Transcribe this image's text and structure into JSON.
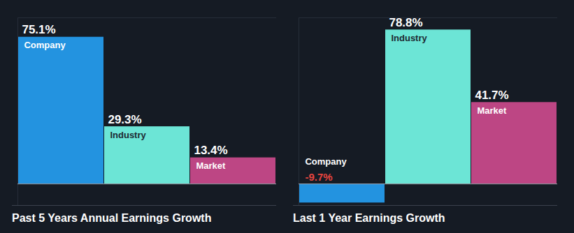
{
  "chart_data": [
    {
      "type": "bar",
      "title": "Past 5 Years Annual Earnings Growth",
      "categories": [
        "Company",
        "Industry",
        "Market"
      ],
      "values": [
        75.1,
        29.3,
        13.4
      ],
      "value_labels": [
        "75.1%",
        "29.3%",
        "13.4%"
      ],
      "colors": [
        "#2393e0",
        "#6ce5d6",
        "#bd4684"
      ],
      "ylim": [
        -11,
        85
      ],
      "yticks": [
        0
      ],
      "grid": true,
      "data_labels": true,
      "tick_labels": false
    },
    {
      "type": "bar",
      "title": "Last 1 Year Earnings Growth",
      "categories": [
        "Company",
        "Industry",
        "Market"
      ],
      "values": [
        -9.7,
        78.8,
        41.7
      ],
      "value_labels": [
        "-9.7%",
        "78.8%",
        "41.7%"
      ],
      "colors": [
        "#2393e0",
        "#6ce5d6",
        "#bd4684"
      ],
      "ylim": [
        -11,
        85
      ],
      "yticks": [
        0
      ],
      "grid": true,
      "data_labels": true,
      "tick_labels": false
    }
  ]
}
